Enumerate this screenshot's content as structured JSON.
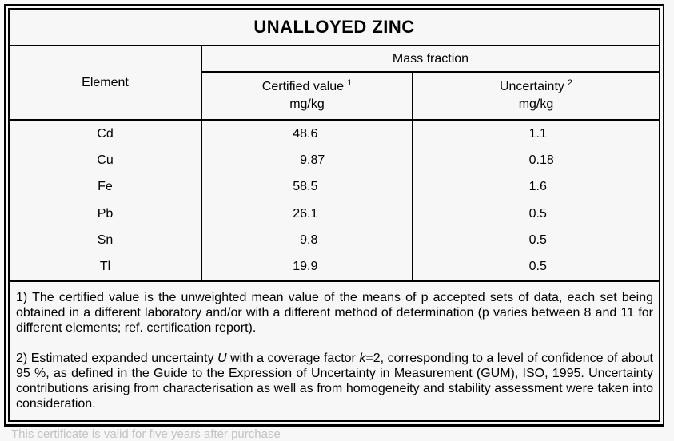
{
  "title": "UNALLOYED ZINC",
  "table": {
    "element_header": "Element",
    "group_header": "Mass fraction",
    "certified_col": {
      "label": "Certified value",
      "sup": "1",
      "unit": "mg/kg"
    },
    "uncertainty_col": {
      "label": "Uncertainty",
      "sup": "2",
      "unit": "mg/kg"
    },
    "rows": [
      {
        "element": "Cd",
        "certified": "48.6",
        "uncertainty": "1.1"
      },
      {
        "element": "Cu",
        "certified": "9.87",
        "uncertainty": "0.18"
      },
      {
        "element": "Fe",
        "certified": "58.5",
        "uncertainty": "1.6"
      },
      {
        "element": "Pb",
        "certified": "26.1",
        "uncertainty": "0.5"
      },
      {
        "element": "Sn",
        "certified": "9.8",
        "uncertainty": "0.5"
      },
      {
        "element": "Tl",
        "certified": "19.9",
        "uncertainty": "0.5"
      }
    ]
  },
  "footnotes": {
    "note1": "1) The certified value is the unweighted mean value of the means of p accepted sets of data, each set being obtained in a different laboratory and/or with a different method of determination (p varies between 8 and 11 for different elements; ref. certification report).",
    "note2": {
      "pre": "2) Estimated expanded uncertainty ",
      "u_symbol": "U",
      "mid": " with a coverage factor ",
      "k_symbol": "k",
      "post": "=2, corresponding to a level of confidence of about 95 %, as defined in the Guide to the Expression of Uncertainty in Measurement (GUM), ISO, 1995. Uncertainty contributions arising from characterisation as well as from homogeneity and stability assessment were taken into consideration."
    }
  },
  "footer_note": "This certificate is valid for five years after purchase",
  "colors": {
    "border": "#000000",
    "page_background": "#f7f7f7",
    "footer_text": "#c3c3c3"
  }
}
